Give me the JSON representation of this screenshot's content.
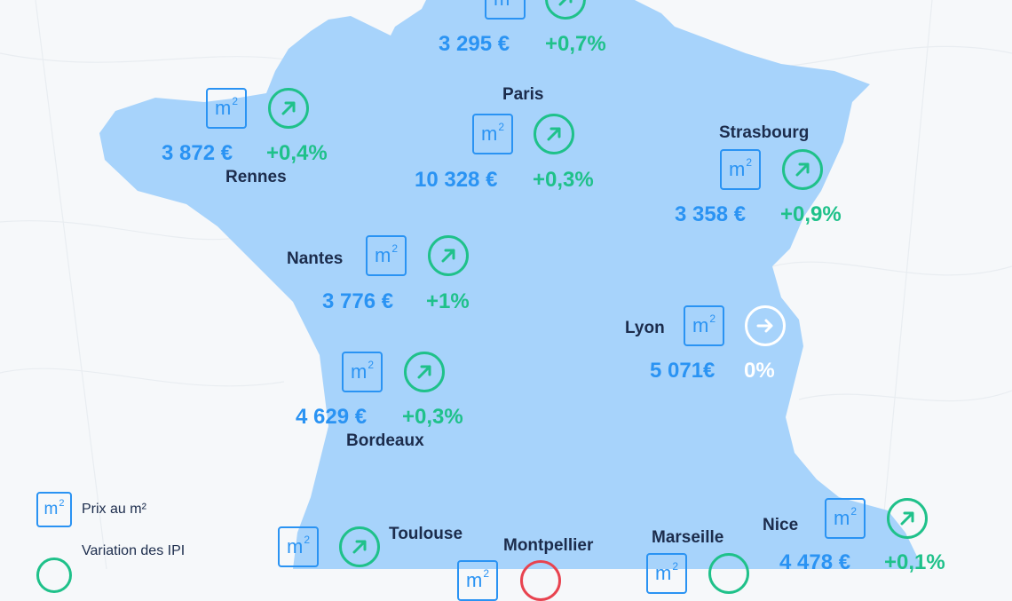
{
  "m2_icon_label": "m",
  "m2_icon_sup": "2",
  "colors": {
    "map_fill": "#a7d3fb",
    "price": "#2a93f3",
    "increase": "#1fc18a",
    "neutral": "#ffffff",
    "decrease": "#e8434f"
  },
  "cities": [
    {
      "name": "",
      "price": "3 295 €",
      "variation": "+0,7%",
      "trend": "up"
    },
    {
      "name": "Paris",
      "price": "10 328 €",
      "variation": "+0,3%",
      "trend": "up"
    },
    {
      "name": "Rennes",
      "price": "3 872 €",
      "variation": "+0,4%",
      "trend": "up"
    },
    {
      "name": "Strasbourg",
      "price": "3 358 €",
      "variation": "+0,9%",
      "trend": "up"
    },
    {
      "name": "Nantes",
      "price": "3 776 €",
      "variation": "+1%",
      "trend": "up"
    },
    {
      "name": "Lyon",
      "price": "5 071€",
      "variation": "0%",
      "trend": "flat"
    },
    {
      "name": "Bordeaux",
      "price": "4 629 €",
      "variation": "+0,3%",
      "trend": "up"
    },
    {
      "name": "Toulouse",
      "price": "",
      "variation": "",
      "trend": "up"
    },
    {
      "name": "Montpellier",
      "price": "",
      "variation": "",
      "trend": "down"
    },
    {
      "name": "Marseille",
      "price": "",
      "variation": "",
      "trend": "up"
    },
    {
      "name": "Nice",
      "price": "4 478 €",
      "variation": "+0,1%",
      "trend": "up"
    }
  ],
  "legend": {
    "price_label": "Prix au m²",
    "variation_label": "Variation des IPI"
  }
}
